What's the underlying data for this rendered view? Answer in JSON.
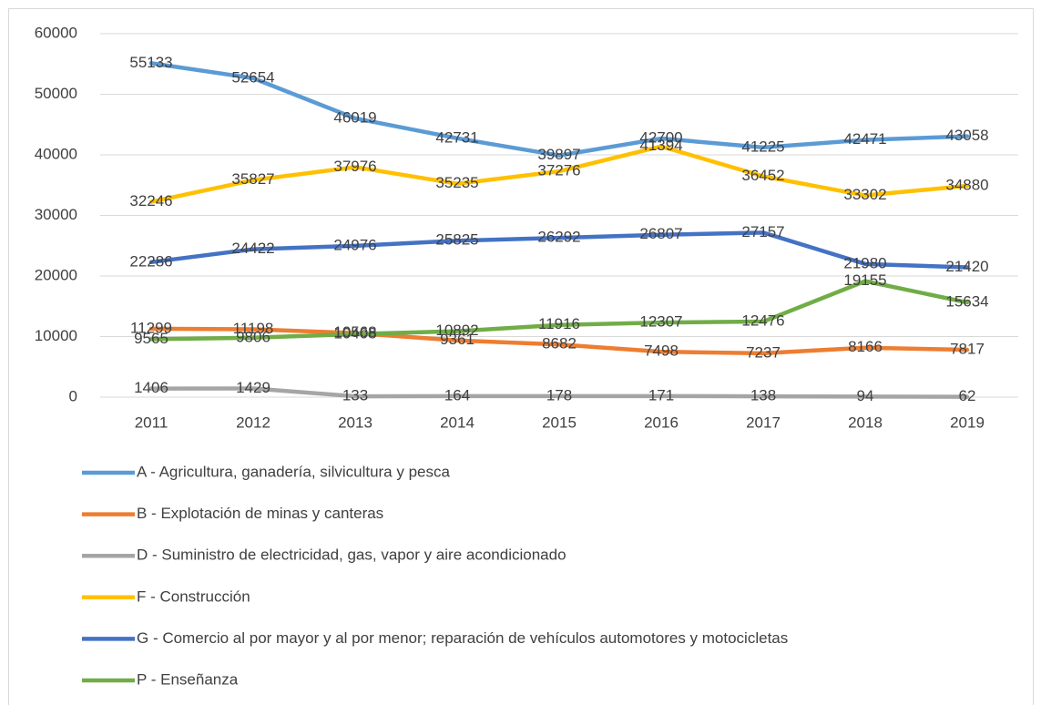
{
  "chart_data": {
    "type": "line",
    "categories": [
      "2011",
      "2012",
      "2013",
      "2014",
      "2015",
      "2016",
      "2017",
      "2018",
      "2019"
    ],
    "series": [
      {
        "name": "A - Agricultura, ganadería, silvicultura y pesca",
        "color": "#5b9bd5",
        "values": [
          55133,
          52654,
          46019,
          42731,
          39897,
          42700,
          41225,
          42471,
          43058
        ]
      },
      {
        "name": "B - Explotación de minas y canteras",
        "color": "#ed7d31",
        "values": [
          11299,
          11198,
          10568,
          9361,
          8682,
          7498,
          7237,
          8166,
          7817
        ]
      },
      {
        "name": "D - Suministro de electricidad, gas, vapor y aire acondicionado",
        "color": "#a5a5a5",
        "values": [
          1406,
          1429,
          133,
          164,
          178,
          171,
          138,
          94,
          62
        ]
      },
      {
        "name": "F - Construcción",
        "color": "#ffc000",
        "values": [
          32246,
          35827,
          37976,
          35235,
          37276,
          41394,
          36452,
          33302,
          34880
        ]
      },
      {
        "name": "G - Comercio al por mayor y al por menor; reparación de vehículos automotores y motocicletas",
        "color": "#4472c4",
        "values": [
          22286,
          24422,
          24976,
          25825,
          26292,
          26807,
          27157,
          21980,
          21420
        ]
      },
      {
        "name": "P - Enseñanza",
        "color": "#70ad47",
        "values": [
          9565,
          9806,
          10408,
          10892,
          11916,
          12307,
          12476,
          19155,
          15634
        ]
      }
    ],
    "ylim": [
      0,
      60000
    ],
    "yticks": [
      0,
      10000,
      20000,
      30000,
      40000,
      50000,
      60000
    ],
    "grid": true,
    "legend": "bottom"
  }
}
